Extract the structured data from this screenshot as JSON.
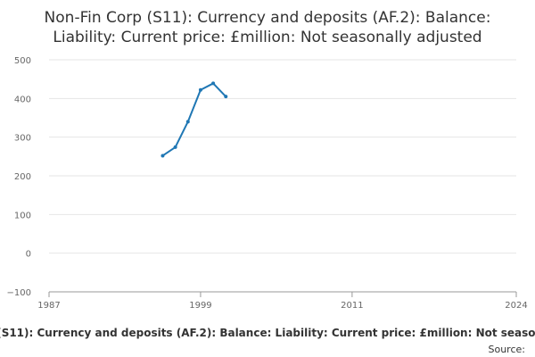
{
  "chart_data": {
    "type": "line",
    "title_lines": [
      "Non-Fin Corp (S11): Currency and deposits (AF.2): Balance:",
      "Liability: Current price: £million: Not seasonally adjusted"
    ],
    "x_ticks": [
      "1987",
      "1999",
      "2011",
      "2024"
    ],
    "y_ticks": [
      "−100",
      "0",
      "100",
      "200",
      "300",
      "400",
      "500"
    ],
    "xlim": [
      1987,
      2024
    ],
    "ylim": [
      -100,
      500
    ],
    "series": [
      {
        "name": "Non-Fin Corp (S11): Currency and deposits (AF.2): Balance: Liability: Current price: £million: Not seasonally adjusted",
        "color": "#1f77b4",
        "x": [
          1996,
          1997,
          1998,
          1999,
          2000,
          2001
        ],
        "y": [
          252,
          274,
          340,
          422,
          439,
          405
        ]
      }
    ],
    "grid": true,
    "legend_position": "bottom",
    "source_label": "Source:"
  }
}
